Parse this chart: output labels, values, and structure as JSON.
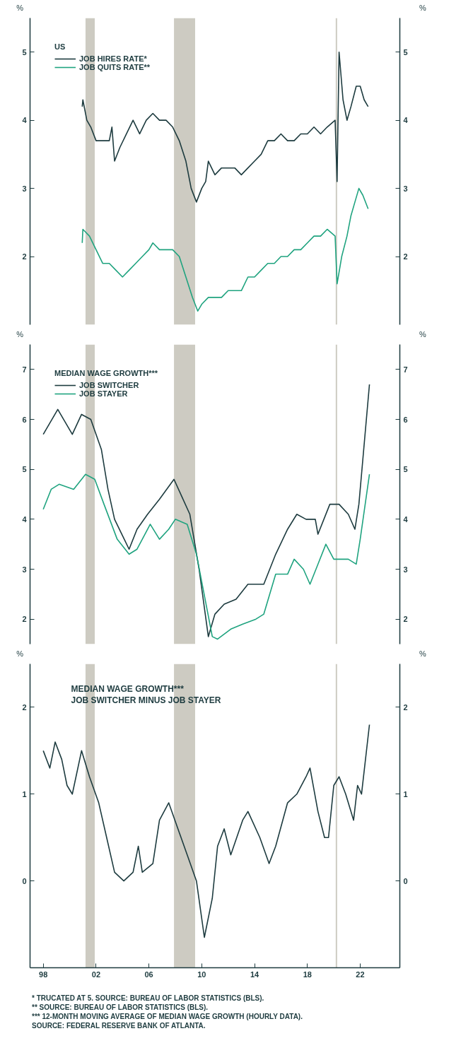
{
  "chart_data": [
    {
      "type": "line",
      "legend_title": "US",
      "ylabel": "%",
      "y2label": "%",
      "legend": "top left",
      "tick_labels": "y",
      "grid": false,
      "xlim": [
        1997,
        2025
      ],
      "ylim": [
        1,
        5.5
      ],
      "yticks": [
        2,
        3,
        4,
        5
      ],
      "y2lim": [
        1,
        5.5
      ],
      "y2ticks": [
        2,
        3,
        4,
        5
      ],
      "bands": [
        {
          "axis": "x",
          "from": 2001.2,
          "to": 2001.9,
          "color": "#cdcbc2"
        },
        {
          "axis": "x",
          "from": 2007.9,
          "to": 2009.5,
          "color": "#cdcbc2"
        }
      ],
      "ref_lines": [
        {
          "axis": "x",
          "value": 2020.2,
          "color": "#cdcbc2"
        }
      ],
      "series": [
        {
          "name": "JOB HIRES RATE*",
          "color": "#1d3b3f",
          "x": [
            2000.95,
            2001.0,
            2001.3,
            2001.6,
            2002.0,
            2002.5,
            2003.0,
            2003.2,
            2003.4,
            2003.8,
            2004.3,
            2004.8,
            2005.3,
            2005.8,
            2006.3,
            2006.8,
            2007.3,
            2007.8,
            2008.3,
            2008.8,
            2009.2,
            2009.6,
            2010.0,
            2010.3,
            2010.5,
            2011.0,
            2011.5,
            2012.0,
            2012.5,
            2013.0,
            2013.5,
            2014.0,
            2014.5,
            2015.0,
            2015.5,
            2016.0,
            2016.5,
            2017.0,
            2017.5,
            2018.0,
            2018.5,
            2019.0,
            2019.5,
            2020.1,
            2020.25,
            2020.4,
            2020.7,
            2021.0,
            2021.3,
            2021.7,
            2022.0,
            2022.3,
            2022.6
          ],
          "values": [
            4.2,
            4.3,
            4.0,
            3.9,
            3.7,
            3.7,
            3.7,
            3.9,
            3.4,
            3.6,
            3.8,
            4.0,
            3.8,
            4.0,
            4.1,
            4.0,
            4.0,
            3.9,
            3.7,
            3.4,
            3.0,
            2.8,
            3.0,
            3.1,
            3.4,
            3.2,
            3.3,
            3.3,
            3.3,
            3.2,
            3.3,
            3.4,
            3.5,
            3.7,
            3.7,
            3.8,
            3.7,
            3.7,
            3.8,
            3.8,
            3.9,
            3.8,
            3.9,
            4.0,
            3.1,
            5.0,
            4.3,
            4.0,
            4.2,
            4.5,
            4.5,
            4.3,
            4.2
          ]
        },
        {
          "name": "JOB QUITS RATE**",
          "color": "#1fa37f",
          "x": [
            2000.95,
            2001.0,
            2001.5,
            2002.0,
            2002.5,
            2003.0,
            2003.5,
            2004.0,
            2004.5,
            2005.0,
            2005.5,
            2006.0,
            2006.3,
            2006.8,
            2007.3,
            2007.8,
            2008.3,
            2008.8,
            2009.3,
            2009.7,
            2010.0,
            2010.5,
            2011.0,
            2011.5,
            2012.0,
            2012.5,
            2013.0,
            2013.5,
            2014.0,
            2014.5,
            2015.0,
            2015.5,
            2016.0,
            2016.5,
            2017.0,
            2017.5,
            2018.0,
            2018.5,
            2019.0,
            2019.5,
            2020.1,
            2020.25,
            2020.6,
            2021.0,
            2021.3,
            2021.6,
            2021.9,
            2022.2,
            2022.6
          ],
          "values": [
            2.2,
            2.4,
            2.3,
            2.1,
            1.9,
            1.9,
            1.8,
            1.7,
            1.8,
            1.9,
            2.0,
            2.1,
            2.2,
            2.1,
            2.1,
            2.1,
            2.0,
            1.7,
            1.4,
            1.2,
            1.3,
            1.4,
            1.4,
            1.4,
            1.5,
            1.5,
            1.5,
            1.7,
            1.7,
            1.8,
            1.9,
            1.9,
            2.0,
            2.0,
            2.1,
            2.1,
            2.2,
            2.3,
            2.3,
            2.4,
            2.3,
            1.6,
            2.0,
            2.3,
            2.6,
            2.8,
            3.0,
            2.9,
            2.7
          ]
        }
      ]
    },
    {
      "type": "line",
      "legend_title": "MEDIAN WAGE GROWTH***",
      "ylabel": "%",
      "y2label": "%",
      "legend": "top left",
      "tick_labels": "y",
      "grid": false,
      "xlim": [
        1997,
        2025
      ],
      "ylim": [
        1.5,
        7.5
      ],
      "yticks": [
        2,
        3,
        4,
        5,
        6,
        7
      ],
      "y2lim": [
        1.5,
        7.5
      ],
      "y2ticks": [
        2,
        3,
        4,
        5,
        6,
        7
      ],
      "bands": [
        {
          "axis": "x",
          "from": 2001.2,
          "to": 2001.9,
          "color": "#cdcbc2"
        },
        {
          "axis": "x",
          "from": 2007.9,
          "to": 2009.5,
          "color": "#cdcbc2"
        }
      ],
      "ref_lines": [
        {
          "axis": "x",
          "value": 2020.2,
          "color": "#cdcbc2"
        }
      ],
      "series": [
        {
          "name": "JOB SWITCHER",
          "color": "#1d3b3f",
          "x": [
            1998.0,
            1999.1,
            2000.2,
            2000.9,
            2001.6,
            2002.4,
            2002.9,
            2003.4,
            2004.5,
            2005.1,
            2005.9,
            2006.8,
            2007.9,
            2009.1,
            2009.8,
            2010.5,
            2011.0,
            2011.7,
            2012.6,
            2013.5,
            2014.7,
            2015.6,
            2016.5,
            2017.2,
            2017.9,
            2018.6,
            2018.8,
            2019.7,
            2020.4,
            2021.1,
            2021.6,
            2021.9,
            2022.7
          ],
          "values": [
            5.7,
            6.2,
            5.7,
            6.1,
            6.0,
            5.4,
            4.6,
            4.0,
            3.4,
            3.8,
            4.1,
            4.4,
            4.8,
            4.1,
            3.0,
            1.65,
            2.1,
            2.3,
            2.4,
            2.7,
            2.7,
            3.3,
            3.8,
            4.1,
            4.0,
            4.0,
            3.7,
            4.3,
            4.3,
            4.1,
            3.8,
            4.3,
            6.7
          ]
        },
        {
          "name": "JOB STAYER",
          "color": "#1fa37f",
          "x": [
            1998.0,
            1998.6,
            1999.2,
            2000.3,
            2001.2,
            2001.9,
            2002.6,
            2003.6,
            2004.5,
            2005.1,
            2006.1,
            2006.8,
            2007.5,
            2008.0,
            2008.9,
            2009.6,
            2010.8,
            2011.2,
            2012.2,
            2013.1,
            2014.1,
            2014.7,
            2015.6,
            2016.5,
            2017.0,
            2017.7,
            2018.2,
            2018.8,
            2019.4,
            2020.0,
            2021.1,
            2021.7,
            2022.0,
            2022.7
          ],
          "values": [
            4.2,
            4.6,
            4.7,
            4.6,
            4.9,
            4.8,
            4.3,
            3.6,
            3.3,
            3.4,
            3.9,
            3.6,
            3.8,
            4.0,
            3.9,
            3.3,
            1.65,
            1.6,
            1.8,
            1.9,
            2.0,
            2.1,
            2.9,
            2.9,
            3.2,
            3.0,
            2.7,
            3.1,
            3.5,
            3.2,
            3.2,
            3.1,
            3.6,
            4.9
          ]
        }
      ]
    },
    {
      "type": "line",
      "title": "MEDIAN WAGE GROWTH***",
      "subtitle": "JOB SWITCHER MINUS JOB STAYER",
      "ylabel": "%",
      "y2label": "%",
      "grid": false,
      "xlim": [
        1997,
        2025
      ],
      "xticks": [
        {
          "value": 1998,
          "label": "98"
        },
        {
          "value": 2002,
          "label": "02"
        },
        {
          "value": 2006,
          "label": "06"
        },
        {
          "value": 2010,
          "label": "10"
        },
        {
          "value": 2014,
          "label": "14"
        },
        {
          "value": 2018,
          "label": "18"
        },
        {
          "value": 2022,
          "label": "22"
        }
      ],
      "ylim": [
        -1,
        2.5
      ],
      "yticks": [
        0,
        1,
        2
      ],
      "y2lim": [
        -1,
        2.5
      ],
      "y2ticks": [
        0,
        1,
        2
      ],
      "bands": [
        {
          "axis": "x",
          "from": 2001.2,
          "to": 2001.9,
          "color": "#cdcbc2"
        },
        {
          "axis": "x",
          "from": 2007.9,
          "to": 2009.5,
          "color": "#cdcbc2"
        }
      ],
      "ref_lines": [
        {
          "axis": "x",
          "value": 2020.2,
          "color": "#cdcbc2"
        }
      ],
      "annotations": [
        "* TRUCATED AT 5. SOURCE: BUREAU OF LABOR STATISTICS (BLS).",
        "** SOURCE: BUREAU OF LABOR STATISTICS (BLS).",
        "*** 12-MONTH MOVING AVERAGE OF MEDIAN WAGE GROWTH (HOURLY DATA).",
        "SOURCE: FEDERAL RESERVE BANK OF ATLANTA."
      ],
      "series": [
        {
          "color": "#1d3b3f",
          "x": [
            1998.0,
            1998.5,
            1998.9,
            1999.4,
            1999.8,
            2000.2,
            2000.9,
            2001.5,
            2002.2,
            2002.8,
            2003.4,
            2004.1,
            2004.8,
            2005.2,
            2005.5,
            2006.3,
            2006.8,
            2007.5,
            2008.2,
            2008.9,
            2009.6,
            2010.2,
            2010.8,
            2011.2,
            2011.7,
            2012.2,
            2013.1,
            2013.5,
            2014.4,
            2015.1,
            2015.6,
            2016.5,
            2017.2,
            2017.9,
            2018.2,
            2018.8,
            2019.3,
            2019.6,
            2020.0,
            2020.4,
            2020.9,
            2021.5,
            2021.8,
            2022.1,
            2022.7
          ],
          "values": [
            1.5,
            1.3,
            1.6,
            1.4,
            1.1,
            1.0,
            1.5,
            1.2,
            0.9,
            0.5,
            0.1,
            0.0,
            0.1,
            0.4,
            0.1,
            0.2,
            0.7,
            0.9,
            0.6,
            0.3,
            0.0,
            -0.65,
            -0.2,
            0.4,
            0.6,
            0.3,
            0.7,
            0.8,
            0.5,
            0.2,
            0.4,
            0.9,
            1.0,
            1.2,
            1.3,
            0.8,
            0.5,
            0.5,
            1.1,
            1.2,
            1.0,
            0.7,
            1.1,
            1.0,
            1.8
          ]
        }
      ]
    }
  ]
}
